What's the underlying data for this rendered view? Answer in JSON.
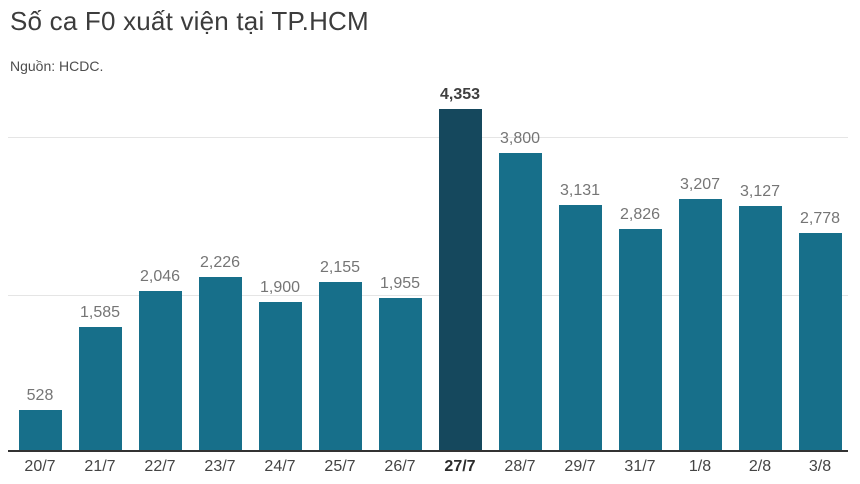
{
  "header": {
    "title": "Số ca F0 xuất viện tại TP.HCM",
    "subtitle": "Nguồn: HCDC."
  },
  "chart_data": {
    "type": "bar",
    "title": "Số ca F0 xuất viện tại TP.HCM",
    "source": "Nguồn: HCDC.",
    "categories": [
      "20/7",
      "21/7",
      "22/7",
      "23/7",
      "24/7",
      "25/7",
      "26/7",
      "27/7",
      "28/7",
      "29/7",
      "31/7",
      "1/8",
      "2/8",
      "3/8"
    ],
    "values": [
      528,
      1585,
      2046,
      2226,
      1900,
      2155,
      1955,
      4353,
      3800,
      3131,
      2826,
      3207,
      3127,
      2778
    ],
    "labels": [
      "528",
      "1,585",
      "2,046",
      "2,226",
      "1,900",
      "2,155",
      "1,955",
      "4,353",
      "3,800",
      "3,131",
      "2,826",
      "3,207",
      "3,127",
      "2,778"
    ],
    "highlight_index": 7,
    "highlight_category": "27/7",
    "xlabel": "",
    "ylabel": "",
    "ylim": [
      0,
      4500
    ],
    "gridline_values": [
      2000,
      4000
    ],
    "grid": "horizontal-only",
    "legend": "none",
    "value_labels_position": "above-bars",
    "colors": {
      "background": "#ffffff",
      "bar": "#176f8a",
      "bar_highlight": "#15485d",
      "value_label": "#757575",
      "value_label_highlight": "#3f3f3f",
      "tick_label": "#444444",
      "tick_label_highlight": "#2b2b2b",
      "gridline": "#e5e5e5",
      "axis": "#333333",
      "title": "#3c3c3c",
      "subtitle": "#4d4d4d"
    }
  }
}
